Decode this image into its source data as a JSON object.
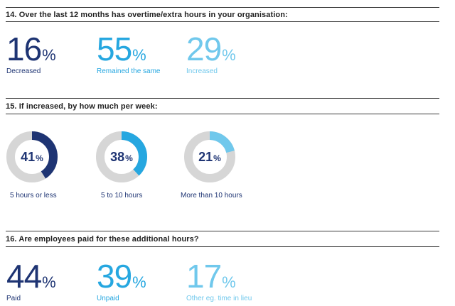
{
  "q14": {
    "title": "14. Over the last 12 months has overtime/extra hours in your organisation:",
    "stats": [
      {
        "value": "16",
        "unit": "%",
        "label": "Decreased",
        "color": "#1e3473"
      },
      {
        "value": "55",
        "unit": "%",
        "label": "Remained the same",
        "color": "#26a7e0"
      },
      {
        "value": "29",
        "unit": "%",
        "label": "Increased",
        "color": "#70c8ec"
      }
    ]
  },
  "q15": {
    "title": "15. If increased, by how much per week:",
    "donuts": [
      {
        "value": "41",
        "unit": "%",
        "label": "5 hours or less",
        "color": "#1e3473"
      },
      {
        "value": "38",
        "unit": "%",
        "label": "5 to 10 hours",
        "color": "#26a7e0"
      },
      {
        "value": "21",
        "unit": "%",
        "label": "More than 10 hours",
        "color": "#70c8ec"
      }
    ]
  },
  "q16": {
    "title": "16. Are employees paid for these additional hours?",
    "stats": [
      {
        "value": "44",
        "unit": "%",
        "label": "Paid",
        "color": "#1e3473"
      },
      {
        "value": "39",
        "unit": "%",
        "label": "Unpaid",
        "color": "#26a7e0"
      },
      {
        "value": "17",
        "unit": "%",
        "label": "Other eg. time in lieu",
        "color": "#70c8ec"
      }
    ]
  },
  "chart_data": [
    {
      "type": "table",
      "title": "14. Over the last 12 months has overtime/extra hours in your organisation:",
      "categories": [
        "Decreased",
        "Remained the same",
        "Increased"
      ],
      "values": [
        16,
        55,
        29
      ]
    },
    {
      "type": "pie",
      "title": "15. If increased, by how much per week:",
      "categories": [
        "5 hours or less",
        "5 to 10 hours",
        "More than 10 hours"
      ],
      "values": [
        41,
        38,
        21
      ]
    },
    {
      "type": "table",
      "title": "16. Are employees paid for these additional hours?",
      "categories": [
        "Paid",
        "Unpaid",
        "Other eg. time in lieu"
      ],
      "values": [
        44,
        39,
        17
      ]
    }
  ],
  "colors": {
    "track": "#d6d6d6"
  }
}
